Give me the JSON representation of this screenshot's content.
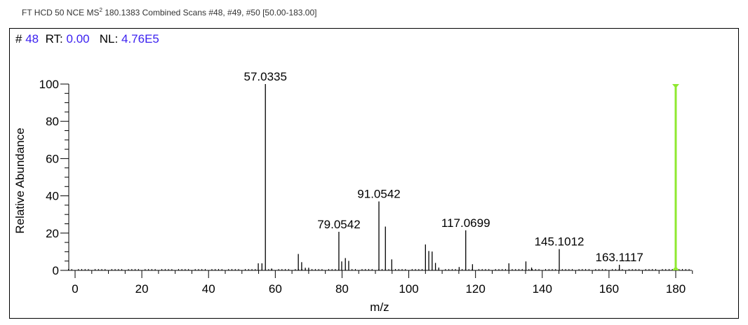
{
  "header": {
    "title_pre": "FT HCD 50 NCE MS",
    "title_sup": "2",
    "title_post": " 180.1383 Combined Scans #48, #49, #50 [50.00-183.00]"
  },
  "info": {
    "scan_label": "#",
    "scan": "48",
    "rt_label": "RT:",
    "rt": "0.00",
    "nl_label": "NL:",
    "nl": "4.76E5"
  },
  "chart_data": {
    "type": "bar",
    "title": "",
    "xlabel": "m/z",
    "ylabel": "Relative Abundance",
    "xlim": [
      -2,
      185
    ],
    "ylim": [
      0,
      100
    ],
    "xticks": [
      0,
      20,
      40,
      60,
      80,
      100,
      120,
      140,
      160,
      180
    ],
    "yticks": [
      0,
      20,
      40,
      60,
      80,
      100
    ],
    "peaks": [
      {
        "mz": 54.9,
        "y": 3.8
      },
      {
        "mz": 56.0,
        "y": 3.8
      },
      {
        "mz": 57.0335,
        "y": 100,
        "label": "57.0335"
      },
      {
        "mz": 58.9,
        "y": 1.0
      },
      {
        "mz": 66.9,
        "y": 8.8
      },
      {
        "mz": 67.9,
        "y": 4.4
      },
      {
        "mz": 69.0,
        "y": 1.4
      },
      {
        "mz": 70.0,
        "y": 1.4
      },
      {
        "mz": 79.0542,
        "y": 20.7,
        "label": "79.0542"
      },
      {
        "mz": 79.9,
        "y": 4.8
      },
      {
        "mz": 81.0,
        "y": 6.6
      },
      {
        "mz": 82.0,
        "y": 5.1
      },
      {
        "mz": 91.0542,
        "y": 37,
        "label": "91.0542"
      },
      {
        "mz": 93.0,
        "y": 23.5
      },
      {
        "mz": 94.9,
        "y": 5.9
      },
      {
        "mz": 105.0,
        "y": 13.9
      },
      {
        "mz": 106.0,
        "y": 10.4
      },
      {
        "mz": 107.0,
        "y": 10.1
      },
      {
        "mz": 108.0,
        "y": 4.0
      },
      {
        "mz": 109.0,
        "y": 1.5
      },
      {
        "mz": 115.1,
        "y": 1.8
      },
      {
        "mz": 117.0699,
        "y": 21.5,
        "label": "117.0699"
      },
      {
        "mz": 119.1,
        "y": 3.3
      },
      {
        "mz": 130.0,
        "y": 3.8
      },
      {
        "mz": 135.1,
        "y": 4.8
      },
      {
        "mz": 136.8,
        "y": 1.5
      },
      {
        "mz": 145.1012,
        "y": 11.4,
        "label": "145.1012"
      },
      {
        "mz": 163.1117,
        "y": 3.0,
        "label": "163.1117"
      }
    ],
    "precursor_marker": {
      "mz": 180.1383,
      "y": 100,
      "color": "#8fe830"
    },
    "peak_color": "#000000"
  }
}
